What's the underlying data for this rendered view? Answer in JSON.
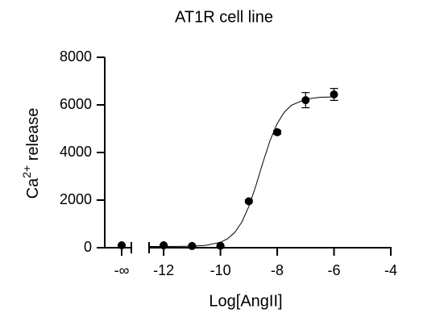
{
  "chart_data": {
    "type": "scatter",
    "title": "AT1R cell line",
    "xlabel": "Log[AngII]",
    "ylabel": {
      "base": "Ca",
      "sup": "2+",
      "rest": " release"
    },
    "color": "#000000",
    "x": [
      -12,
      -11,
      -10,
      -9,
      -8,
      -7,
      -6
    ],
    "values": [
      100,
      70,
      80,
      1950,
      4850,
      6200,
      6440
    ],
    "errors": [
      30,
      30,
      30,
      60,
      80,
      320,
      250
    ],
    "neg_inf": {
      "label": "-∞",
      "value": 100,
      "error": 30
    },
    "fit": {
      "x": [
        -12.5,
        -12,
        -11.5,
        -11,
        -10.5,
        -10,
        -9.75,
        -9.5,
        -9.25,
        -9,
        -8.75,
        -8.5,
        -8.25,
        -8,
        -7.75,
        -7.5,
        -7,
        -6.5,
        -6
      ],
      "values": [
        50,
        51,
        54,
        64,
        101,
        226,
        375,
        635,
        1068,
        1730,
        2611,
        3597,
        4512,
        5218,
        5695,
        5984,
        6242,
        6319,
        6341
      ]
    },
    "xlim": [
      -12.5,
      -4
    ],
    "xticks": [
      -12,
      -10,
      -8,
      -6,
      -4
    ],
    "ylim": [
      0,
      8000
    ],
    "yticks": [
      0,
      2000,
      4000,
      6000,
      8000
    ]
  }
}
